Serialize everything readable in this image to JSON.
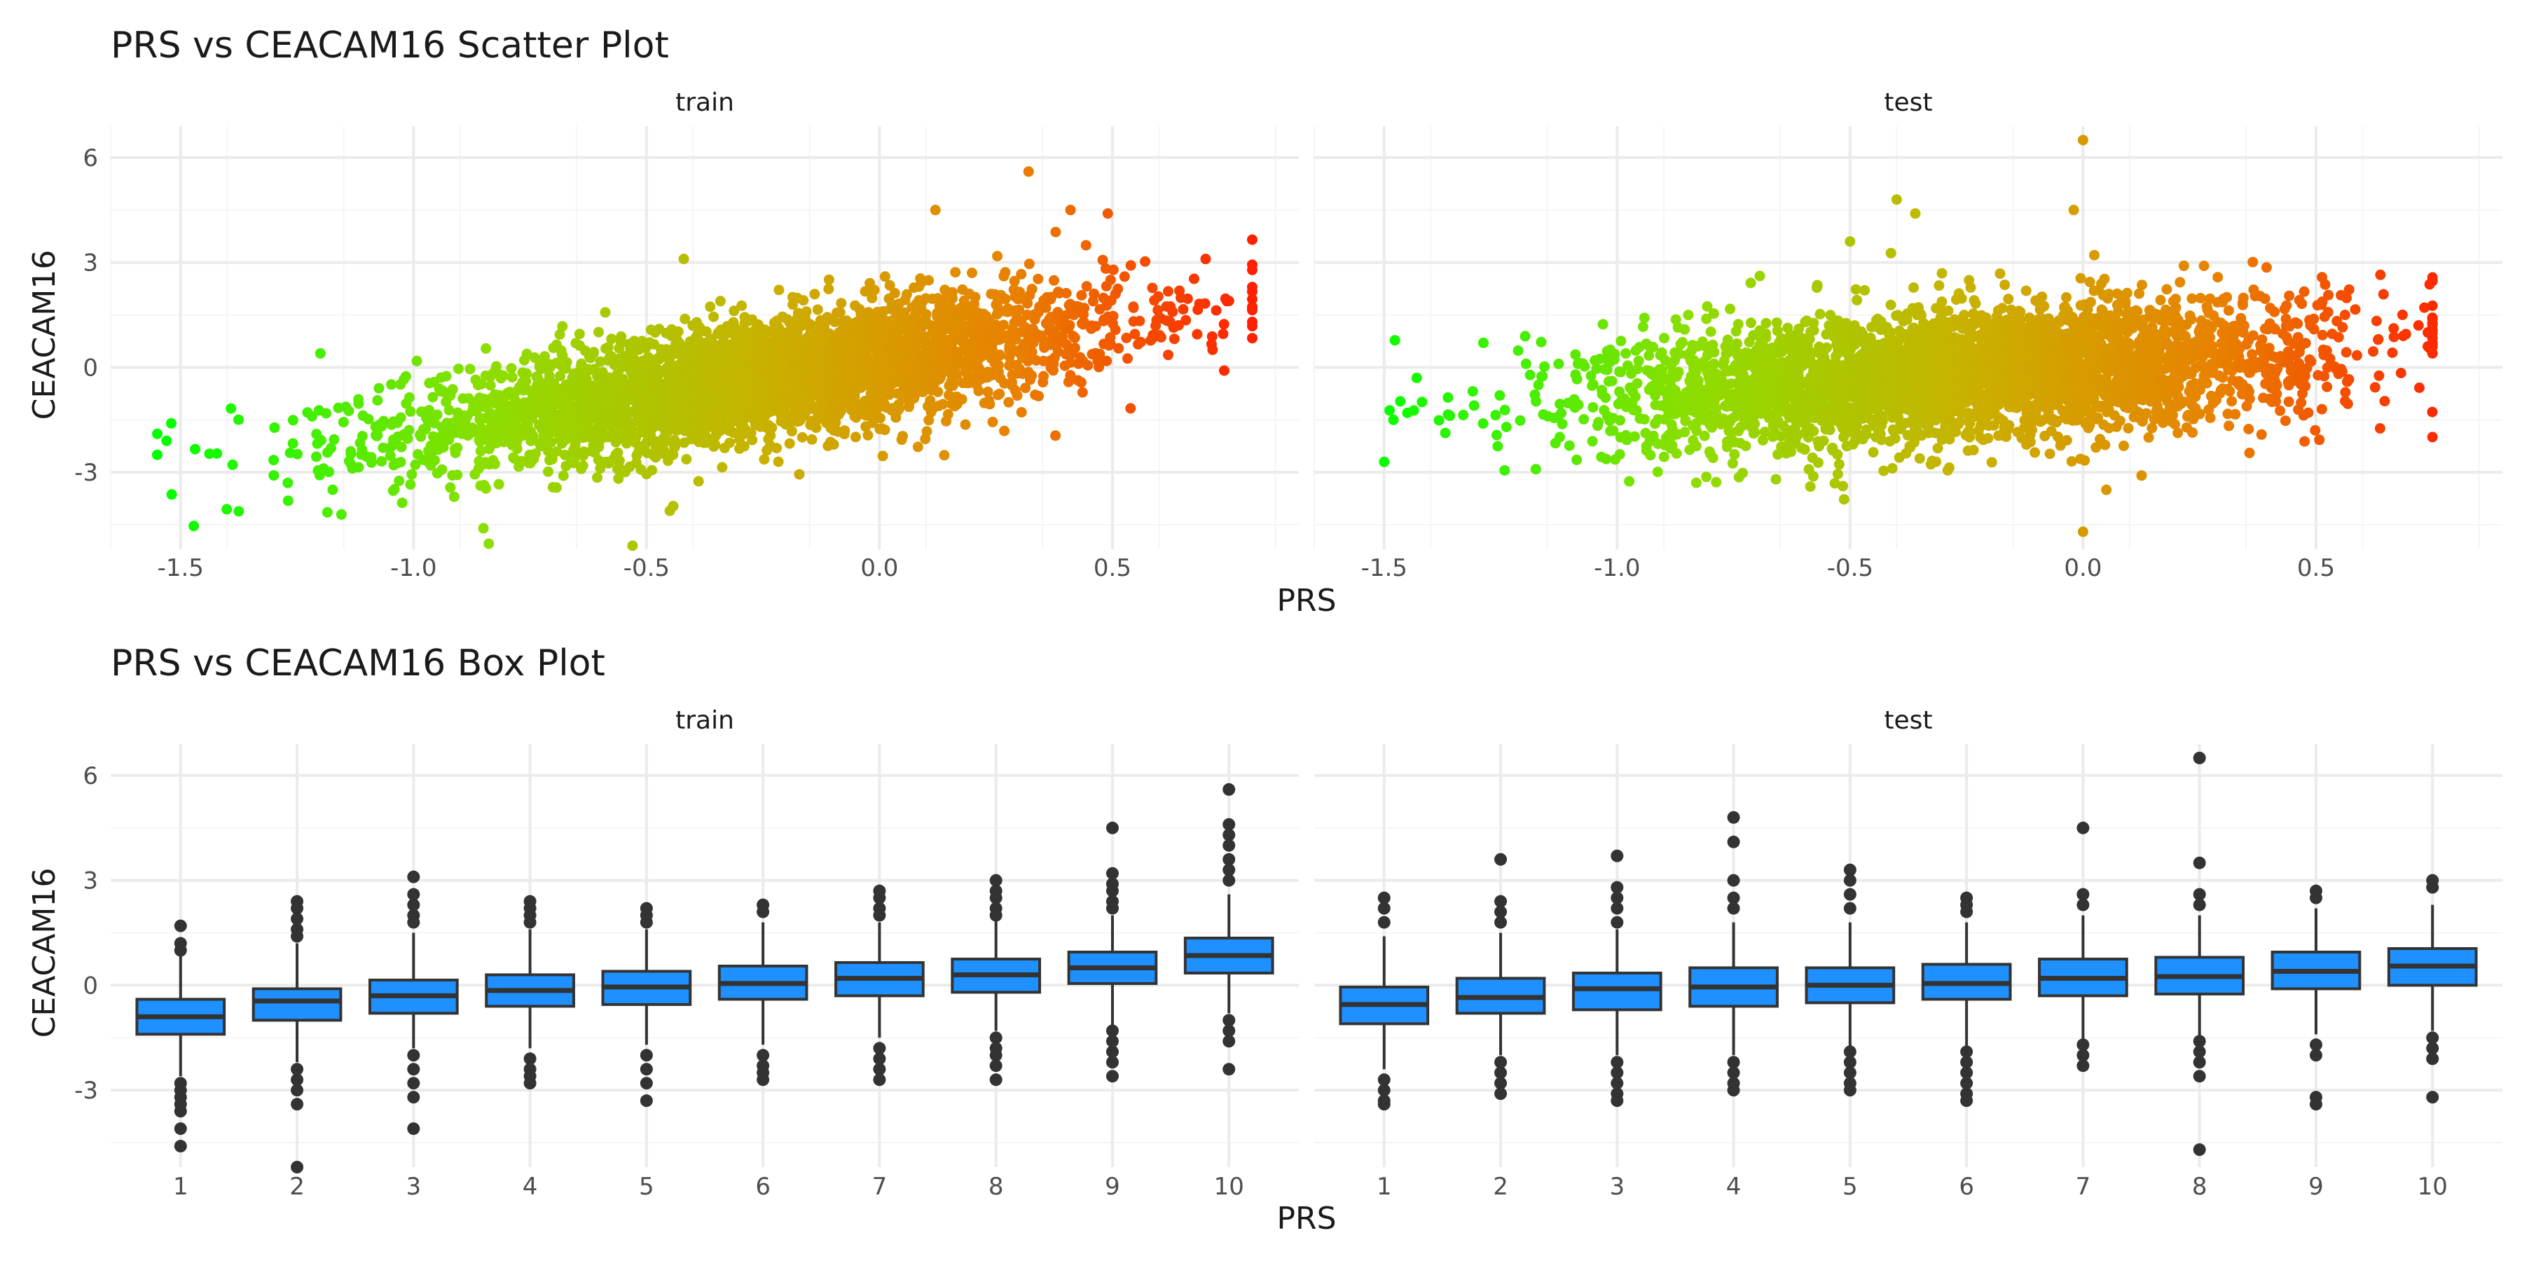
{
  "colors": {
    "grid_major": "#ebebeb",
    "grid_minor": "#f5f5f5",
    "text": "#1a1a1a",
    "tick_text": "#4d4d4d",
    "box_fill": "#1e90ff",
    "box_stroke": "#333333",
    "outlier": "#333333",
    "scatter_low": "#00ff00",
    "scatter_high": "#ff2000"
  },
  "chart_data": [
    {
      "type": "scatter",
      "title": "PRS vs CEACAM16 Scatter Plot",
      "xlabel": "PRS",
      "ylabel": "CEACAM16",
      "xlim": [
        -1.65,
        0.9
      ],
      "ylim": [
        -5.2,
        6.9
      ],
      "x_ticks": [
        -1.5,
        -1.0,
        -0.5,
        0.0,
        0.5
      ],
      "x_tick_labels": [
        "-1.5",
        "-1.0",
        "-0.5",
        "0.0",
        "0.5"
      ],
      "y_ticks": [
        -3,
        0,
        3,
        6
      ],
      "y_tick_labels": [
        "-3",
        "0",
        "3",
        "6"
      ],
      "color_scale": "PRS, green (low) to red (high)",
      "legend": "none",
      "grid": true,
      "panels": [
        {
          "label": "train",
          "trend": {
            "slope": 2.0,
            "intercept": 0.2,
            "sd": 0.85
          },
          "x_range": [
            -1.55,
            0.8
          ],
          "outliers": [
            {
              "x": -1.55,
              "y": -1.9
            },
            {
              "x": -1.52,
              "y": -1.6
            },
            {
              "x": -1.53,
              "y": -2.1
            },
            {
              "x": 0.8,
              "y": 1.3
            },
            {
              "x": 0.75,
              "y": 1.9
            },
            {
              "x": 0.32,
              "y": 5.6
            },
            {
              "x": 0.12,
              "y": 4.5
            },
            {
              "x": -0.42,
              "y": 3.1
            },
            {
              "x": -0.53,
              "y": -5.1
            },
            {
              "x": -0.85,
              "y": -4.6
            },
            {
              "x": -0.45,
              "y": -4.1
            },
            {
              "x": 0.41,
              "y": 4.5
            },
            {
              "x": 0.49,
              "y": 4.4
            },
            {
              "x": -1.2,
              "y": 0.4
            },
            {
              "x": 0.7,
              "y": 3.1
            }
          ]
        },
        {
          "label": "test",
          "trend": {
            "slope": 0.9,
            "intercept": 0.05,
            "sd": 0.95
          },
          "x_range": [
            -1.5,
            0.75
          ],
          "outliers": [
            {
              "x": 0.0,
              "y": 6.5
            },
            {
              "x": -0.02,
              "y": 4.5
            },
            {
              "x": -0.4,
              "y": 4.8
            },
            {
              "x": -0.36,
              "y": 4.4
            },
            {
              "x": -0.5,
              "y": 3.6
            },
            {
              "x": 0.0,
              "y": -4.7
            },
            {
              "x": 0.72,
              "y": 1.2
            },
            {
              "x": 0.74,
              "y": 1.0
            },
            {
              "x": 0.74,
              "y": 0.6
            },
            {
              "x": -1.43,
              "y": -0.3
            },
            {
              "x": -1.48,
              "y": -1.5
            },
            {
              "x": -1.45,
              "y": -1.3
            },
            {
              "x": -0.83,
              "y": -3.3
            },
            {
              "x": 0.05,
              "y": -3.5
            }
          ]
        }
      ]
    },
    {
      "type": "box",
      "title": "PRS vs CEACAM16 Box Plot",
      "xlabel": "PRS",
      "ylabel": "CEACAM16",
      "ylim": [
        -5.2,
        6.9
      ],
      "y_ticks": [
        -3,
        0,
        3,
        6
      ],
      "y_tick_labels": [
        "-3",
        "0",
        "3",
        "6"
      ],
      "categories": [
        "1",
        "2",
        "3",
        "4",
        "5",
        "6",
        "7",
        "8",
        "9",
        "10"
      ],
      "legend": "none",
      "grid": true,
      "panels": [
        {
          "label": "train",
          "boxes": [
            {
              "q1": -1.4,
              "median": -0.9,
              "q3": -0.4,
              "lower": -2.6,
              "upper": 0.9,
              "outliers": [
                1.7,
                1.2,
                1.0,
                -2.8,
                -3.0,
                -3.2,
                -3.4,
                -3.6,
                -4.1,
                -4.6
              ]
            },
            {
              "q1": -1.0,
              "median": -0.45,
              "q3": -0.1,
              "lower": -2.2,
              "upper": 1.2,
              "outliers": [
                2.4,
                2.2,
                1.9,
                1.6,
                1.4,
                -2.4,
                -2.7,
                -3.0,
                -3.4,
                -5.2
              ]
            },
            {
              "q1": -0.8,
              "median": -0.3,
              "q3": 0.15,
              "lower": -1.8,
              "upper": 1.5,
              "outliers": [
                3.1,
                2.6,
                2.3,
                2.0,
                1.8,
                -2.0,
                -2.4,
                -2.8,
                -3.2,
                -4.1
              ]
            },
            {
              "q1": -0.6,
              "median": -0.15,
              "q3": 0.3,
              "lower": -1.8,
              "upper": 1.6,
              "outliers": [
                2.4,
                2.2,
                2.0,
                1.8,
                -2.1,
                -2.4,
                -2.6,
                -2.8
              ]
            },
            {
              "q1": -0.55,
              "median": -0.05,
              "q3": 0.4,
              "lower": -1.7,
              "upper": 1.6,
              "outliers": [
                2.2,
                2.0,
                1.8,
                -2.0,
                -2.4,
                -2.8,
                -3.3
              ]
            },
            {
              "q1": -0.4,
              "median": 0.05,
              "q3": 0.55,
              "lower": -1.7,
              "upper": 1.8,
              "outliers": [
                2.3,
                2.1,
                -2.0,
                -2.3,
                -2.5,
                -2.7
              ]
            },
            {
              "q1": -0.3,
              "median": 0.2,
              "q3": 0.65,
              "lower": -1.5,
              "upper": 1.8,
              "outliers": [
                2.7,
                2.5,
                2.2,
                2.0,
                -1.8,
                -2.1,
                -2.4,
                -2.7
              ]
            },
            {
              "q1": -0.2,
              "median": 0.3,
              "q3": 0.75,
              "lower": -1.3,
              "upper": 1.9,
              "outliers": [
                3.0,
                2.7,
                2.5,
                2.2,
                2.0,
                -1.5,
                -1.8,
                -2.0,
                -2.3,
                -2.7
              ]
            },
            {
              "q1": 0.05,
              "median": 0.5,
              "q3": 0.95,
              "lower": -1.2,
              "upper": 2.0,
              "outliers": [
                4.5,
                3.2,
                2.9,
                2.7,
                2.4,
                2.2,
                -1.3,
                -1.6,
                -1.9,
                -2.2,
                -2.6
              ]
            },
            {
              "q1": 0.35,
              "median": 0.85,
              "q3": 1.35,
              "lower": -0.8,
              "upper": 2.6,
              "outliers": [
                5.6,
                4.6,
                4.3,
                4.0,
                3.6,
                3.3,
                3.0,
                -1.0,
                -1.3,
                -1.6,
                -2.4
              ]
            }
          ]
        },
        {
          "label": "test",
          "boxes": [
            {
              "q1": -1.1,
              "median": -0.55,
              "q3": -0.05,
              "lower": -2.4,
              "upper": 1.4,
              "outliers": [
                2.5,
                2.2,
                1.8,
                -2.7,
                -3.0,
                -3.3,
                -3.4
              ]
            },
            {
              "q1": -0.8,
              "median": -0.35,
              "q3": 0.2,
              "lower": -2.0,
              "upper": 1.5,
              "outliers": [
                3.6,
                2.4,
                2.1,
                1.8,
                -2.2,
                -2.5,
                -2.8,
                -3.1
              ]
            },
            {
              "q1": -0.7,
              "median": -0.1,
              "q3": 0.35,
              "lower": -2.0,
              "upper": 1.6,
              "outliers": [
                3.7,
                2.8,
                2.5,
                2.2,
                1.8,
                -2.2,
                -2.5,
                -2.8,
                -3.1,
                -3.3
              ]
            },
            {
              "q1": -0.6,
              "median": -0.05,
              "q3": 0.5,
              "lower": -2.0,
              "upper": 1.8,
              "outliers": [
                4.8,
                4.1,
                3.0,
                2.5,
                2.2,
                -2.2,
                -2.5,
                -2.8,
                -3.0
              ]
            },
            {
              "q1": -0.5,
              "median": 0.0,
              "q3": 0.5,
              "lower": -1.8,
              "upper": 1.8,
              "outliers": [
                3.3,
                3.0,
                2.6,
                2.2,
                -1.9,
                -2.2,
                -2.5,
                -2.8,
                -3.0
              ]
            },
            {
              "q1": -0.4,
              "median": 0.05,
              "q3": 0.6,
              "lower": -1.8,
              "upper": 1.8,
              "outliers": [
                2.5,
                2.3,
                2.1,
                -1.9,
                -2.2,
                -2.5,
                -2.8,
                -3.1,
                -3.3
              ]
            },
            {
              "q1": -0.3,
              "median": 0.2,
              "q3": 0.75,
              "lower": -1.6,
              "upper": 2.0,
              "outliers": [
                4.5,
                2.6,
                2.3,
                -1.7,
                -2.0,
                -2.3
              ]
            },
            {
              "q1": -0.25,
              "median": 0.25,
              "q3": 0.8,
              "lower": -1.5,
              "upper": 2.0,
              "outliers": [
                6.5,
                3.5,
                2.6,
                2.3,
                -1.6,
                -1.9,
                -2.2,
                -2.6,
                -4.7
              ]
            },
            {
              "q1": -0.1,
              "median": 0.4,
              "q3": 0.95,
              "lower": -1.4,
              "upper": 2.2,
              "outliers": [
                2.7,
                2.5,
                -1.7,
                -2.0,
                -3.2,
                -3.4
              ]
            },
            {
              "q1": 0.0,
              "median": 0.55,
              "q3": 1.05,
              "lower": -1.3,
              "upper": 2.3,
              "outliers": [
                3.0,
                2.8,
                -1.5,
                -1.8,
                -2.1,
                -3.2
              ]
            }
          ]
        }
      ]
    }
  ]
}
